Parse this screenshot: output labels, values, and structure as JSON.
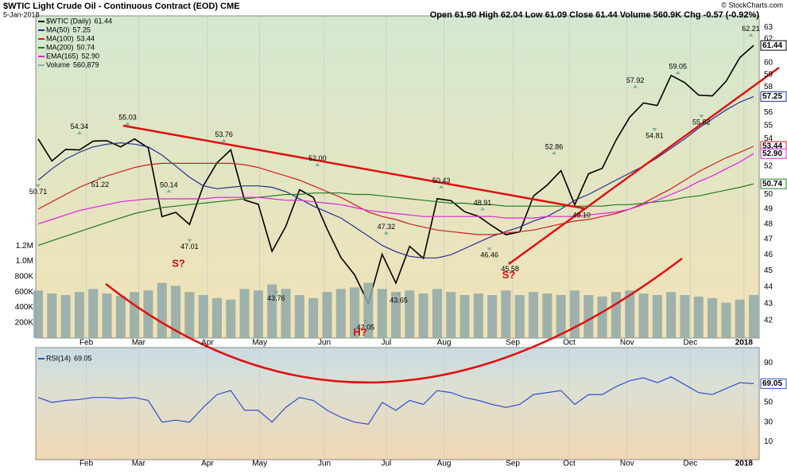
{
  "header": {
    "title": "$WTIC Light Crude Oil - Continuous Contract (EOD) CME",
    "date": "5-Jan-2018",
    "quote": "Open 61.90  High 62.04  Low 61.09  Close 61.44  Volume 560.9K  Chg -0.57 (-0.92%)",
    "credit": "© StockCharts.com"
  },
  "chart_data": [
    {
      "type": "line",
      "log_scale": true,
      "grid": true,
      "ylim": [
        41,
        64
      ],
      "yticks": [
        42,
        43,
        44,
        45,
        46,
        47,
        48,
        49,
        50,
        52,
        54,
        55,
        56,
        58,
        59,
        60,
        62,
        63
      ],
      "y2lim": [
        0,
        4200000
      ],
      "y2ticks": [
        {
          "value": 200000,
          "label": "200K"
        },
        {
          "value": 400000,
          "label": "400K"
        },
        {
          "value": 600000,
          "label": "600K"
        },
        {
          "value": 800000,
          "label": "800K"
        },
        {
          "value": 1000000,
          "label": "1.0M"
        },
        {
          "value": 1200000,
          "label": "1.2M"
        }
      ],
      "xlim": [
        0,
        52
      ],
      "xticks": [
        {
          "value": 3.5,
          "label": "Feb"
        },
        {
          "value": 7.3,
          "label": "Mar"
        },
        {
          "value": 12.3,
          "label": "Apr"
        },
        {
          "value": 16.1,
          "label": "May"
        },
        {
          "value": 20.8,
          "label": "Jun"
        },
        {
          "value": 25.3,
          "label": "Jul"
        },
        {
          "value": 29.5,
          "label": "Aug"
        },
        {
          "value": 34.5,
          "label": "Sep"
        },
        {
          "value": 38.6,
          "label": "Oct"
        },
        {
          "value": 42.8,
          "label": "Nov"
        },
        {
          "value": 47.4,
          "label": "Dec"
        },
        {
          "value": 51.3,
          "label": "2018"
        }
      ],
      "series": [
        {
          "name": "$WTIC (Daily)",
          "legend_value": "61.44",
          "color": "#000000",
          "values": [
            53.99,
            52.37,
            53.22,
            53.17,
            53.83,
            53.86,
            53.4,
            53.99,
            53.33,
            48.49,
            48.78,
            47.97,
            50.6,
            52.24,
            53.18,
            49.62,
            49.33,
            46.22,
            47.84,
            50.33,
            49.8,
            47.66,
            45.83,
            44.74,
            43.01,
            46.04,
            44.23,
            46.54,
            45.77,
            49.71,
            49.58,
            48.82,
            48.51,
            47.87,
            47.29,
            47.48,
            49.89,
            50.66,
            51.67,
            49.29,
            51.45,
            51.84,
            53.9,
            55.64,
            56.74,
            56.55,
            58.95,
            58.36,
            57.36,
            57.3,
            58.47,
            60.42,
            61.44
          ]
        },
        {
          "name": "MA(50)",
          "legend_value": "57.25",
          "color": "#24308f",
          "values": [
            51.0,
            51.8,
            52.5,
            53.0,
            53.4,
            53.6,
            53.7,
            53.6,
            53.4,
            52.8,
            52.0,
            51.2,
            50.6,
            50.4,
            50.5,
            50.6,
            50.6,
            50.5,
            50.2,
            49.7,
            49.2,
            48.8,
            48.4,
            47.8,
            47.2,
            46.6,
            46.2,
            45.9,
            45.8,
            45.8,
            46.0,
            46.4,
            46.8,
            47.2,
            47.5,
            47.8,
            48.2,
            48.5,
            49.0,
            49.6,
            50.0,
            50.5,
            51.0,
            51.5,
            52.0,
            52.6,
            53.3,
            54.0,
            54.8,
            55.5,
            56.2,
            56.8,
            57.25
          ]
        },
        {
          "name": "MA(100)",
          "legend_value": "53.44",
          "color": "#cc2020",
          "values": [
            49.0,
            49.5,
            50.0,
            50.5,
            50.9,
            51.3,
            51.6,
            51.9,
            52.1,
            52.2,
            52.2,
            52.2,
            52.2,
            52.2,
            52.2,
            52.1,
            51.9,
            51.6,
            51.3,
            51.0,
            50.6,
            50.2,
            49.8,
            49.3,
            48.8,
            48.5,
            48.3,
            48.0,
            47.8,
            47.6,
            47.5,
            47.4,
            47.3,
            47.3,
            47.4,
            47.5,
            47.6,
            47.8,
            48.0,
            48.2,
            48.3,
            48.5,
            48.7,
            49.0,
            49.4,
            49.9,
            50.4,
            51.0,
            51.6,
            52.1,
            52.6,
            53.0,
            53.44
          ]
        },
        {
          "name": "MA(200)",
          "legend_value": "50.74",
          "color": "#1f7a1f",
          "values": [
            46.6,
            46.9,
            47.2,
            47.5,
            47.8,
            48.1,
            48.4,
            48.7,
            48.9,
            49.1,
            49.2,
            49.3,
            49.4,
            49.5,
            49.6,
            49.7,
            49.8,
            49.9,
            50.0,
            50.0,
            50.1,
            50.1,
            50.1,
            50.0,
            50.0,
            49.9,
            49.8,
            49.7,
            49.6,
            49.5,
            49.4,
            49.4,
            49.3,
            49.3,
            49.2,
            49.2,
            49.2,
            49.2,
            49.2,
            49.2,
            49.2,
            49.2,
            49.3,
            49.3,
            49.4,
            49.5,
            49.6,
            49.8,
            49.9,
            50.1,
            50.3,
            50.5,
            50.74
          ]
        },
        {
          "name": "EMA(165)",
          "legend_value": "52.90",
          "color": "#e020e0",
          "values": [
            48.0,
            48.3,
            48.6,
            48.9,
            49.1,
            49.3,
            49.5,
            49.6,
            49.7,
            49.7,
            49.7,
            49.7,
            49.7,
            49.8,
            49.8,
            49.8,
            49.8,
            49.7,
            49.6,
            49.6,
            49.5,
            49.4,
            49.3,
            49.1,
            48.9,
            48.8,
            48.7,
            48.6,
            48.5,
            48.5,
            48.5,
            48.5,
            48.5,
            48.5,
            48.4,
            48.4,
            48.4,
            48.5,
            48.5,
            48.5,
            48.6,
            48.7,
            48.8,
            49.0,
            49.3,
            49.6,
            50.0,
            50.4,
            50.9,
            51.3,
            51.8,
            52.3,
            52.9
          ]
        },
        {
          "name": "Volume",
          "legend_value": "560,879",
          "color": "#8fa8a8",
          "axis": "y2",
          "values": [
            620000,
            580000,
            560000,
            600000,
            640000,
            580000,
            550000,
            600000,
            620000,
            720000,
            680000,
            600000,
            560000,
            520000,
            500000,
            640000,
            620000,
            700000,
            640000,
            560000,
            520000,
            600000,
            640000,
            660000,
            720000,
            640000,
            600000,
            620000,
            580000,
            640000,
            600000,
            560000,
            580000,
            560000,
            620000,
            560000,
            600000,
            580000,
            560000,
            620000,
            560000,
            540000,
            600000,
            620000,
            580000,
            560000,
            600000,
            560000,
            540000,
            520000,
            460000,
            500000,
            560879
          ]
        }
      ],
      "annotations": [
        {
          "x": 0,
          "value": 50.71,
          "label": "50.71"
        },
        {
          "x": 3,
          "value": 54.34,
          "label": "54.34"
        },
        {
          "x": 4.5,
          "value": 51.22,
          "label": "51.22"
        },
        {
          "x": 6.5,
          "value": 55.03,
          "label": "55.03"
        },
        {
          "x": 9.5,
          "value": 50.14,
          "label": "50.14"
        },
        {
          "x": 11,
          "value": 47.01,
          "label": "47.01"
        },
        {
          "x": 13.5,
          "value": 53.76,
          "label": "53.76"
        },
        {
          "x": 17.3,
          "value": 43.76,
          "label": "43.76"
        },
        {
          "x": 20.3,
          "value": 52.0,
          "label": "52.00"
        },
        {
          "x": 23.8,
          "value": 42.05,
          "label": "42.05"
        },
        {
          "x": 25.3,
          "value": 47.32,
          "label": "47.32"
        },
        {
          "x": 26.2,
          "value": 43.65,
          "label": "43.65"
        },
        {
          "x": 29.3,
          "value": 50.43,
          "label": "50.43"
        },
        {
          "x": 32.3,
          "value": 48.91,
          "label": "48.91"
        },
        {
          "x": 32.8,
          "value": 46.46,
          "label": "46.46"
        },
        {
          "x": 34.3,
          "value": 45.58,
          "label": "45.58"
        },
        {
          "x": 37.5,
          "value": 52.86,
          "label": "52.86"
        },
        {
          "x": 39.5,
          "value": 49.1,
          "label": "49.10"
        },
        {
          "x": 43.4,
          "value": 57.92,
          "label": "57.92"
        },
        {
          "x": 44.8,
          "value": 54.81,
          "label": "54.81"
        },
        {
          "x": 46.5,
          "value": 59.05,
          "label": "59.05"
        },
        {
          "x": 48.2,
          "value": 55.82,
          "label": "55.82"
        },
        {
          "x": 51.8,
          "value": 62.21,
          "label": "62.21"
        }
      ],
      "patterns": [
        {
          "text": "S?",
          "x": 10.2,
          "value": 45.4
        },
        {
          "text": "H?",
          "x": 23.4,
          "value": 41.3
        },
        {
          "text": "S?",
          "x": 34.2,
          "value": 44.7
        }
      ]
    },
    {
      "type": "line",
      "ylim": [
        0,
        100
      ],
      "yticks": [
        10,
        30,
        50,
        70,
        90
      ],
      "xlim": [
        0,
        52
      ],
      "series": [
        {
          "name": "RSI(14)",
          "legend_value": "69.05",
          "color": "#2f4fcf",
          "values": [
            55,
            50,
            52,
            53,
            55,
            55,
            54,
            55,
            52,
            30,
            32,
            30,
            45,
            58,
            62,
            42,
            42,
            30,
            45,
            55,
            52,
            42,
            35,
            30,
            28,
            50,
            42,
            52,
            48,
            62,
            60,
            55,
            52,
            48,
            45,
            48,
            58,
            60,
            62,
            48,
            58,
            58,
            66,
            72,
            75,
            70,
            76,
            68,
            60,
            58,
            64,
            70,
            69.05
          ]
        }
      ]
    }
  ]
}
